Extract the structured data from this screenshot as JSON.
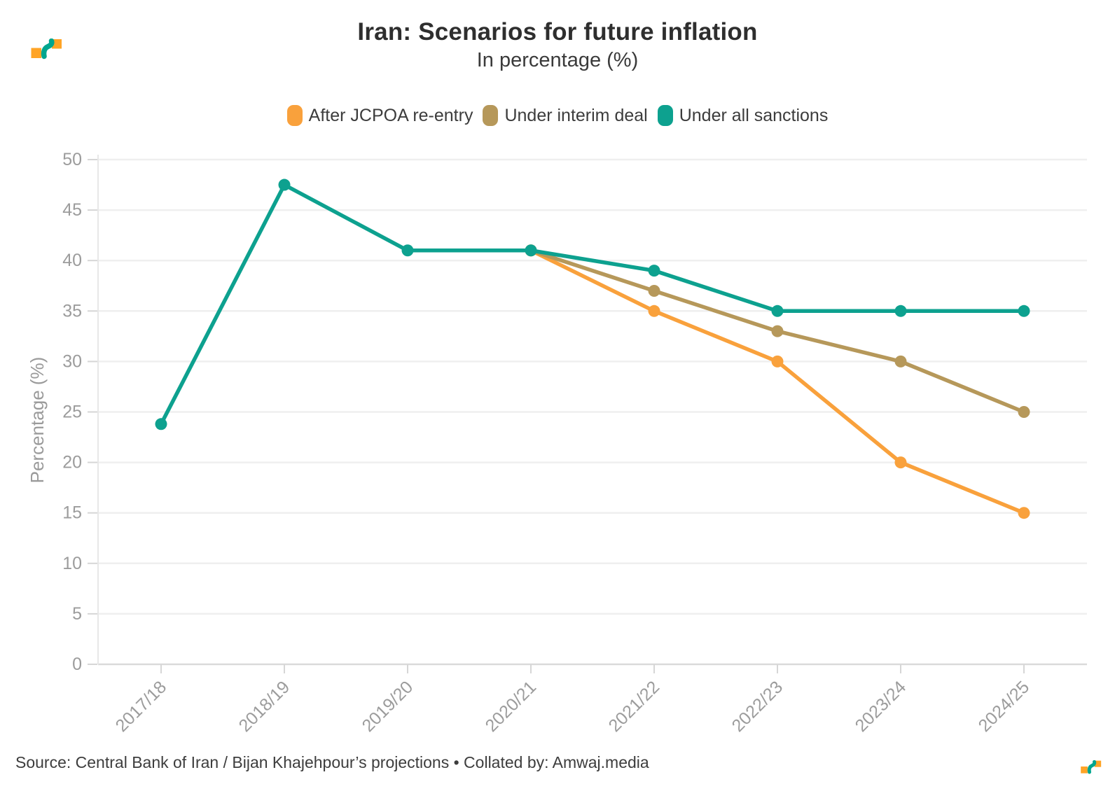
{
  "header": {
    "title": "Iran: Scenarios for future inflation",
    "subtitle": "In percentage (%)"
  },
  "legend": {
    "items": [
      {
        "label": "After JCPOA re-entry",
        "color": "#F9A13C"
      },
      {
        "label": "Under interim deal",
        "color": "#B6985A"
      },
      {
        "label": "Under all sanctions",
        "color": "#0DA18F"
      }
    ]
  },
  "chart_data": {
    "type": "line",
    "title": "Iran: Scenarios for future inflation",
    "subtitle": "In percentage (%)",
    "categories": [
      "2017/18",
      "2018/19",
      "2019/20",
      "2020/21",
      "2021/22",
      "2022/23",
      "2023/24",
      "2024/25"
    ],
    "series": [
      {
        "name": "After JCPOA re-entry",
        "color": "#F9A13C",
        "values": [
          null,
          null,
          null,
          41,
          35,
          30,
          20,
          15
        ]
      },
      {
        "name": "Under interim deal",
        "color": "#B6985A",
        "values": [
          null,
          null,
          null,
          41,
          37,
          33,
          30,
          25
        ]
      },
      {
        "name": "Under all sanctions",
        "color": "#0DA18F",
        "values": [
          23.8,
          47.5,
          41,
          41,
          39,
          35,
          35,
          35
        ]
      }
    ],
    "xlabel": "",
    "ylabel": "Percentage (%)",
    "ylim": [
      0,
      50
    ],
    "ytick_step": 5,
    "grid": "horizontal",
    "legend_position": "top",
    "colors": {
      "gridline": "#EFEFEF",
      "baseline": "#DADADA",
      "axis_line": "#E7E7E7",
      "tick_mark": "#D6D6D6",
      "tick_text": "#9C9C9C",
      "axis_title_text": "#9A9A9A"
    }
  },
  "footer": {
    "source": "Source: Central Bank of Iran / Bijan Khajehpour’s projections • Collated by: Amwaj.media"
  },
  "logo": {
    "name": "amwaj-media-logo",
    "orange": "#FFA426",
    "teal": "#00A68F"
  }
}
